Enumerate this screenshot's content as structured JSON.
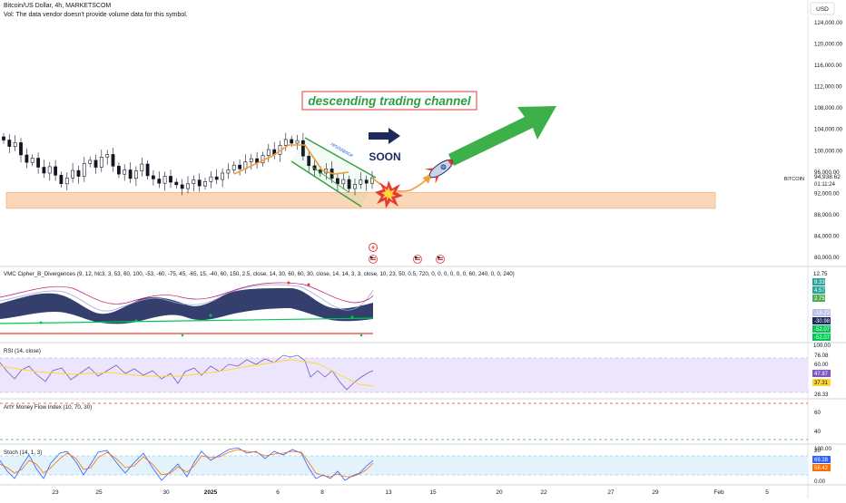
{
  "header": {
    "title": "Bitcoin/US Dollar, 4h, MARKETSCOM",
    "subtitle": "Vol: The data vendor doesn't provide volume data for this symbol.",
    "currency": "USD"
  },
  "annotations": {
    "channel_label": "descending trading channel",
    "resistance_label": "resistance",
    "soon_label": "SOON"
  },
  "price_badge": {
    "symbol": "BITCOIN",
    "price": "94,938.62",
    "countdown": "01:11:24"
  },
  "colors": {
    "candle": "#131722",
    "support_zone": "#f8c9a1",
    "path_arrow": "#f59d3d",
    "big_arrow": "#3db04a",
    "channel": "#2ea043",
    "channel_label_border": "#e53935",
    "channel_label_text": "#2e9e44",
    "navy": "#1e2a5e",
    "rsi_band": "#ebe6fb",
    "stoch_band": "#e3f2fb"
  },
  "icons": [
    "rocket-icon",
    "explosion-icon",
    "lightning-event-icon",
    "us-flag-event-icon"
  ],
  "chart_data": [
    {
      "type": "candlestick",
      "pane": "price",
      "ylim": [
        78000,
        126000
      ],
      "y_ticks": [
        "124,000.00",
        "120,000.00",
        "116,000.00",
        "112,000.00",
        "108,000.00",
        "104,000.00",
        "100,000.00",
        "96,000.00",
        "92,000.00",
        "88,000.00",
        "84,000.00",
        "80,000.00"
      ],
      "x_ticks": [
        "23",
        "25",
        "30",
        "2025",
        "6",
        "8",
        "13",
        "15",
        "20",
        "22",
        "27",
        "29",
        "Feb",
        "5"
      ],
      "support_zone": [
        89200,
        92200
      ],
      "series": [
        {
          "name": "BTCUSD",
          "close": [
            102000,
            100800,
            101500,
            99200,
            97800,
            98600,
            96900,
            95800,
            97000,
            95400,
            93800,
            94900,
            96300,
            95200,
            97600,
            98200,
            96900,
            98800,
            99300,
            97100,
            95600,
            96400,
            94800,
            96200,
            97500,
            95300,
            94700,
            93900,
            95200,
            94100,
            93600,
            92900,
            93800,
            94500,
            93400,
            94200,
            95100,
            94600,
            95800,
            96400,
            97300,
            96600,
            97900,
            98500,
            97700,
            99100,
            100200,
            99300,
            101000,
            102100,
            101400,
            101900,
            99000,
            97200,
            96400,
            95800,
            96600,
            94800,
            93800,
            94600,
            92900,
            93700,
            94500,
            93900,
            94938
          ]
        }
      ]
    },
    {
      "type": "line",
      "pane": "vmc",
      "title": "VMC Cipher_B_Divergences (9, 12, hlc3, 3, 53, 60, 100, -53, -60, -75, 45, -65, 15, -40, 60, 150, 2.5, close, 14, 30, 60, 60, 30, close, 14, 14, 3, 3, close, 10, 23, 50, 0.5, 720, 0, 0, 0, 0, 0, 0, 60, 240, 0, 0, 240)",
      "ylim": [
        -100,
        100
      ],
      "y_ticks": [
        "12.75",
        "100.00"
      ],
      "value_labels": [
        "9.33",
        "4.57",
        "2.75",
        "-18.23",
        "-30.98",
        "-52.07",
        "-52.07"
      ]
    },
    {
      "type": "line",
      "pane": "rsi",
      "title": "RSI (14, close)",
      "ylim": [
        20,
        85
      ],
      "y_ticks": [
        "76.08",
        "60.00",
        "28.33"
      ],
      "value_labels": [
        "47.87",
        "37.31"
      ]
    },
    {
      "type": "line",
      "pane": "mfi",
      "title": "ArtY Money Flow Index (10, 70, 30)",
      "ylim": [
        0,
        90
      ],
      "y_ticks": [
        "60",
        "40",
        "20"
      ]
    },
    {
      "type": "line",
      "pane": "stoch",
      "title": "Stoch (14, 1, 3)",
      "ylim": [
        0,
        100
      ],
      "y_ticks": [
        "100.00",
        "0.00"
      ],
      "value_labels": [
        "69.28",
        "58.42"
      ]
    }
  ]
}
